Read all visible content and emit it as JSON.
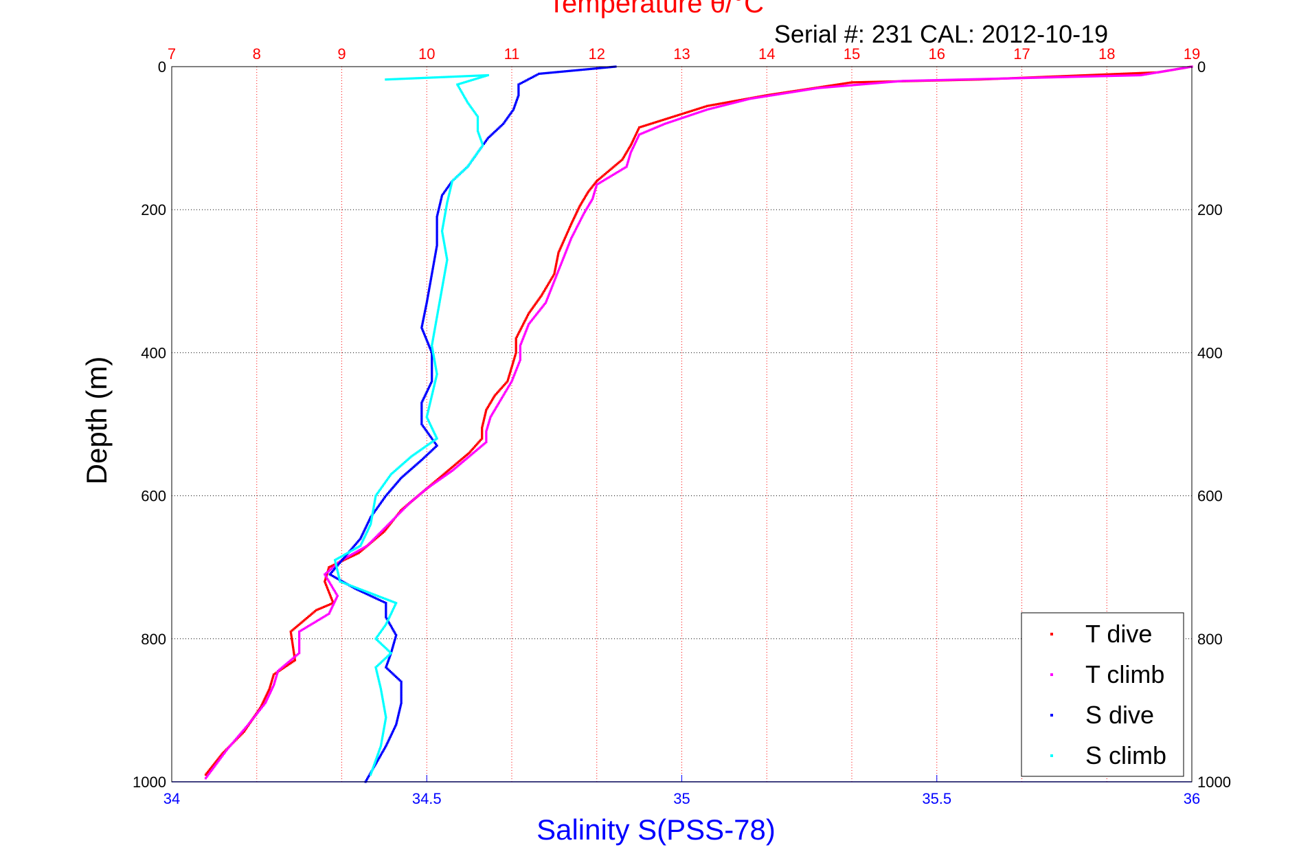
{
  "chart_data": {
    "type": "scatter",
    "top_title": "Temperature θ/°C",
    "subtitle": "Serial #: 231  CAL: 2012-10-19",
    "ylabel": "Depth (m)",
    "xlabel": "Salinity S(PSS-78)",
    "y_reversed": true,
    "ylim": [
      0,
      1000
    ],
    "y_ticks": [
      0,
      200,
      400,
      600,
      800,
      1000
    ],
    "temperature_axis": {
      "range": [
        7,
        19
      ],
      "ticks": [
        7,
        8,
        9,
        10,
        11,
        12,
        13,
        14,
        15,
        16,
        17,
        18,
        19
      ],
      "color": "#ff0000"
    },
    "salinity_axis": {
      "range": [
        34,
        36
      ],
      "ticks": [
        "34",
        "34.5",
        "35",
        "35.5",
        "36"
      ],
      "color": "#0000ff"
    },
    "grid": true,
    "legend_position": "bottom-right",
    "series": [
      {
        "name": "T dive",
        "axis": "temperature",
        "color": "#ff0000",
        "marker": "triangle-down",
        "points": [
          [
            19.0,
            0
          ],
          [
            18.6,
            8
          ],
          [
            16.5,
            18
          ],
          [
            15.0,
            22
          ],
          [
            14.0,
            40
          ],
          [
            13.3,
            55
          ],
          [
            12.9,
            70
          ],
          [
            12.5,
            85
          ],
          [
            12.4,
            110
          ],
          [
            12.3,
            130
          ],
          [
            12.0,
            160
          ],
          [
            11.9,
            175
          ],
          [
            11.8,
            195
          ],
          [
            11.7,
            220
          ],
          [
            11.55,
            260
          ],
          [
            11.5,
            290
          ],
          [
            11.35,
            320
          ],
          [
            11.2,
            345
          ],
          [
            11.05,
            380
          ],
          [
            11.05,
            400
          ],
          [
            10.95,
            440
          ],
          [
            10.8,
            460
          ],
          [
            10.7,
            480
          ],
          [
            10.65,
            505
          ],
          [
            10.65,
            520
          ],
          [
            10.5,
            540
          ],
          [
            10.35,
            555
          ],
          [
            10.1,
            580
          ],
          [
            9.95,
            595
          ],
          [
            9.7,
            620
          ],
          [
            9.5,
            650
          ],
          [
            9.2,
            680
          ],
          [
            8.85,
            700
          ],
          [
            8.8,
            720
          ],
          [
            8.9,
            750
          ],
          [
            8.7,
            760
          ],
          [
            8.4,
            790
          ],
          [
            8.45,
            830
          ],
          [
            8.2,
            850
          ],
          [
            8.15,
            870
          ],
          [
            8.05,
            895
          ],
          [
            7.85,
            930
          ],
          [
            7.6,
            960
          ],
          [
            7.4,
            990
          ]
        ]
      },
      {
        "name": "T climb",
        "axis": "temperature",
        "color": "#ff00ff",
        "marker": "triangle-up",
        "points": [
          [
            19.0,
            0
          ],
          [
            18.4,
            12
          ],
          [
            15.6,
            20
          ],
          [
            14.6,
            30
          ],
          [
            13.8,
            45
          ],
          [
            13.3,
            60
          ],
          [
            12.8,
            80
          ],
          [
            12.5,
            95
          ],
          [
            12.4,
            120
          ],
          [
            12.35,
            140
          ],
          [
            12.0,
            165
          ],
          [
            11.95,
            185
          ],
          [
            11.85,
            205
          ],
          [
            11.7,
            240
          ],
          [
            11.6,
            270
          ],
          [
            11.5,
            300
          ],
          [
            11.4,
            330
          ],
          [
            11.2,
            360
          ],
          [
            11.1,
            390
          ],
          [
            11.1,
            410
          ],
          [
            11.0,
            440
          ],
          [
            10.85,
            470
          ],
          [
            10.75,
            490
          ],
          [
            10.7,
            510
          ],
          [
            10.7,
            525
          ],
          [
            10.5,
            545
          ],
          [
            10.3,
            565
          ],
          [
            10.0,
            590
          ],
          [
            9.8,
            610
          ],
          [
            9.55,
            640
          ],
          [
            9.3,
            670
          ],
          [
            9.0,
            690
          ],
          [
            8.8,
            710
          ],
          [
            8.95,
            740
          ],
          [
            8.85,
            765
          ],
          [
            8.5,
            790
          ],
          [
            8.5,
            820
          ],
          [
            8.25,
            845
          ],
          [
            8.2,
            865
          ],
          [
            8.1,
            890
          ],
          [
            7.9,
            920
          ],
          [
            7.65,
            955
          ],
          [
            7.4,
            995
          ]
        ]
      },
      {
        "name": "S dive",
        "axis": "salinity",
        "color": "#0000ff",
        "marker": "triangle-down",
        "points": [
          [
            34.87,
            0
          ],
          [
            34.72,
            10
          ],
          [
            34.68,
            25
          ],
          [
            34.68,
            40
          ],
          [
            34.67,
            60
          ],
          [
            34.65,
            80
          ],
          [
            34.62,
            100
          ],
          [
            34.6,
            120
          ],
          [
            34.58,
            140
          ],
          [
            34.55,
            160
          ],
          [
            34.53,
            180
          ],
          [
            34.52,
            210
          ],
          [
            34.52,
            250
          ],
          [
            34.51,
            290
          ],
          [
            34.5,
            330
          ],
          [
            34.49,
            365
          ],
          [
            34.51,
            400
          ],
          [
            34.51,
            440
          ],
          [
            34.49,
            470
          ],
          [
            34.49,
            500
          ],
          [
            34.52,
            530
          ],
          [
            34.49,
            550
          ],
          [
            34.45,
            575
          ],
          [
            34.42,
            600
          ],
          [
            34.39,
            630
          ],
          [
            34.37,
            660
          ],
          [
            34.34,
            685
          ],
          [
            34.31,
            710
          ],
          [
            34.36,
            730
          ],
          [
            34.42,
            750
          ],
          [
            34.42,
            770
          ],
          [
            34.44,
            795
          ],
          [
            34.43,
            820
          ],
          [
            34.42,
            840
          ],
          [
            34.45,
            860
          ],
          [
            34.45,
            890
          ],
          [
            34.44,
            920
          ],
          [
            34.42,
            950
          ],
          [
            34.4,
            975
          ],
          [
            34.38,
            1000
          ]
        ]
      },
      {
        "name": "S climb",
        "axis": "salinity",
        "color": "#00ffff",
        "marker": "triangle-up",
        "points": [
          [
            34.42,
            18
          ],
          [
            34.62,
            12
          ],
          [
            34.56,
            25
          ],
          [
            34.58,
            50
          ],
          [
            34.6,
            70
          ],
          [
            34.6,
            90
          ],
          [
            34.61,
            110
          ],
          [
            34.58,
            140
          ],
          [
            34.55,
            160
          ],
          [
            34.54,
            190
          ],
          [
            34.53,
            230
          ],
          [
            34.54,
            270
          ],
          [
            34.53,
            310
          ],
          [
            34.52,
            350
          ],
          [
            34.51,
            390
          ],
          [
            34.52,
            430
          ],
          [
            34.51,
            460
          ],
          [
            34.5,
            490
          ],
          [
            34.52,
            520
          ],
          [
            34.47,
            545
          ],
          [
            34.43,
            570
          ],
          [
            34.4,
            600
          ],
          [
            34.39,
            640
          ],
          [
            34.37,
            670
          ],
          [
            34.32,
            690
          ],
          [
            34.33,
            720
          ],
          [
            34.44,
            750
          ],
          [
            34.42,
            780
          ],
          [
            34.4,
            800
          ],
          [
            34.43,
            820
          ],
          [
            34.4,
            840
          ],
          [
            34.41,
            870
          ],
          [
            34.42,
            910
          ],
          [
            34.41,
            950
          ],
          [
            34.39,
            990
          ]
        ]
      }
    ]
  }
}
